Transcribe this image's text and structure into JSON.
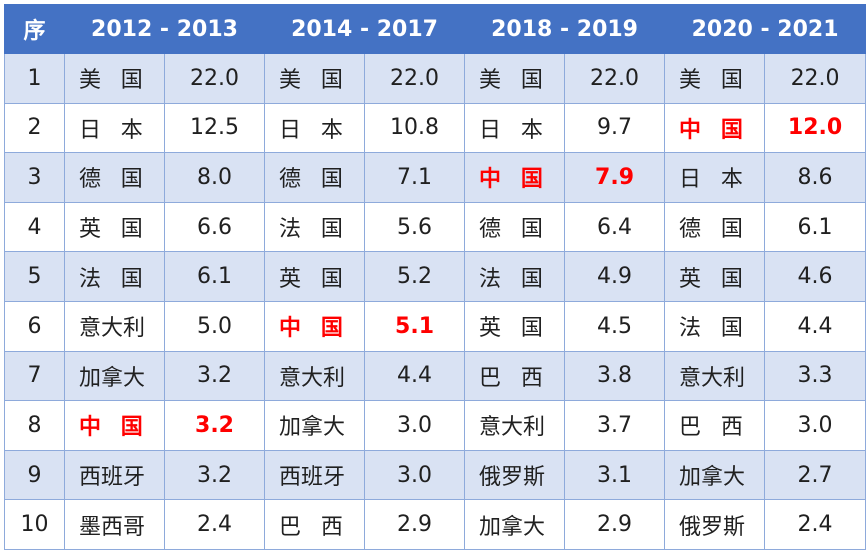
{
  "header": {
    "seq": "序",
    "periods": [
      "2012 - 2013",
      "2014 - 2017",
      "2018 - 2019",
      "2020 - 2021"
    ]
  },
  "rows": [
    {
      "seq": "1",
      "cells": [
        [
          "美国",
          "22.0"
        ],
        [
          "美国",
          "22.0"
        ],
        [
          "美国",
          "22.0"
        ],
        [
          "美国",
          "22.0"
        ]
      ]
    },
    {
      "seq": "2",
      "cells": [
        [
          "日本",
          "12.5"
        ],
        [
          "日本",
          "10.8"
        ],
        [
          "日本",
          "9.7"
        ],
        [
          "中国",
          "12.0"
        ]
      ]
    },
    {
      "seq": "3",
      "cells": [
        [
          "德国",
          "8.0"
        ],
        [
          "德国",
          "7.1"
        ],
        [
          "中国",
          "7.9"
        ],
        [
          "日本",
          "8.6"
        ]
      ]
    },
    {
      "seq": "4",
      "cells": [
        [
          "英国",
          "6.6"
        ],
        [
          "法国",
          "5.6"
        ],
        [
          "德国",
          "6.4"
        ],
        [
          "德国",
          "6.1"
        ]
      ]
    },
    {
      "seq": "5",
      "cells": [
        [
          "法国",
          "6.1"
        ],
        [
          "英国",
          "5.2"
        ],
        [
          "法国",
          "4.9"
        ],
        [
          "英国",
          "4.6"
        ]
      ]
    },
    {
      "seq": "6",
      "cells": [
        [
          "意大利",
          "5.0"
        ],
        [
          "中国",
          "5.1"
        ],
        [
          "英国",
          "4.5"
        ],
        [
          "法国",
          "4.4"
        ]
      ]
    },
    {
      "seq": "7",
      "cells": [
        [
          "加拿大",
          "3.2"
        ],
        [
          "意大利",
          "4.4"
        ],
        [
          "巴西",
          "3.8"
        ],
        [
          "意大利",
          "3.3"
        ]
      ]
    },
    {
      "seq": "8",
      "cells": [
        [
          "中国",
          "3.2"
        ],
        [
          "加拿大",
          "3.0"
        ],
        [
          "意大利",
          "3.7"
        ],
        [
          "巴西",
          "3.0"
        ]
      ]
    },
    {
      "seq": "9",
      "cells": [
        [
          "西班牙",
          "3.2"
        ],
        [
          "西班牙",
          "3.0"
        ],
        [
          "俄罗斯",
          "3.1"
        ],
        [
          "加拿大",
          "2.7"
        ]
      ]
    },
    {
      "seq": "10",
      "cells": [
        [
          "墨西哥",
          "2.4"
        ],
        [
          "巴西",
          "2.9"
        ],
        [
          "加拿大",
          "2.9"
        ],
        [
          "俄罗斯",
          "2.4"
        ]
      ]
    }
  ],
  "highlight": {
    "country": "中国",
    "color": "#ff0000"
  },
  "colors": {
    "header_bg": "#4472c4",
    "band": "#d9e2f3",
    "border": "#8eaadb"
  }
}
